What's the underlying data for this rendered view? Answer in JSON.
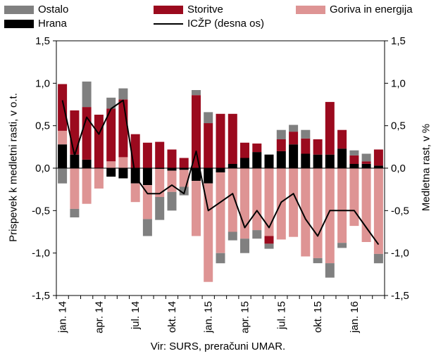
{
  "colors": {
    "ostalo": "#808080",
    "storitve": "#9b0a1e",
    "goriva": "#de9494",
    "hrana": "#000000",
    "line": "#000000"
  },
  "legend": {
    "ostalo": "Ostalo",
    "storitve": "Storitve",
    "goriva": "Goriva in energija",
    "hrana": "Hrana",
    "iczp": "ICŽP (desna os)"
  },
  "source": "Vir: SURS, preračuni UMAR.",
  "chart_data": {
    "type": "bar",
    "stacked": true,
    "ylabel": "Prispevek k medletni rasti, v o.t.",
    "ylabel_right": "Medletna rast, v %",
    "ylim": [
      -1.5,
      1.5
    ],
    "y2lim": [
      -1.5,
      1.5
    ],
    "yticks": [
      "1,5",
      "1,0",
      "0,5",
      "0,0",
      "-0,5",
      "-1,0",
      "-1,5"
    ],
    "y2ticks": [
      "1,5",
      "1,0",
      "0,5",
      "0,0",
      "-0,5",
      "-1,0",
      "-1,5"
    ],
    "grid": false,
    "legend_position": "top",
    "xtick_labels": [
      "jan. 14",
      "apr. 14",
      "jul. 14",
      "okt. 14",
      "jan. 15",
      "apr. 15",
      "jul. 15",
      "okt. 15",
      "jan. 16"
    ],
    "xtick_index": [
      0,
      3,
      6,
      9,
      12,
      15,
      18,
      21,
      24
    ],
    "n_periods": 27,
    "series": [
      {
        "name": "Hrana",
        "values": [
          0.28,
          0.16,
          0.1,
          0.0,
          -0.1,
          -0.12,
          -0.18,
          -0.2,
          -0.01,
          -0.03,
          -0.02,
          -0.15,
          -0.18,
          -0.05,
          0.05,
          0.12,
          0.19,
          0.16,
          0.2,
          0.28,
          0.17,
          0.16,
          0.16,
          0.23,
          0.05,
          0.05,
          0.03
        ]
      },
      {
        "name": "Goriva in energija",
        "values": [
          0.16,
          -0.48,
          -0.42,
          -0.24,
          0.08,
          0.13,
          -0.22,
          -0.4,
          -0.33,
          -0.25,
          -0.2,
          -0.65,
          -1.16,
          -0.95,
          -0.75,
          -0.83,
          -0.73,
          -0.8,
          -0.84,
          -0.81,
          -1.04,
          -1.06,
          -1.12,
          -0.88,
          -0.68,
          -0.87,
          -1.01
        ]
      },
      {
        "name": "Storitve",
        "values": [
          0.55,
          0.52,
          0.62,
          0.63,
          0.62,
          0.68,
          0.4,
          0.3,
          0.31,
          0.22,
          0.12,
          0.86,
          0.53,
          0.64,
          0.59,
          0.18,
          0.1,
          -0.09,
          0.14,
          0.15,
          0.18,
          0.18,
          0.62,
          0.22,
          0.1,
          0.03,
          0.19
        ]
      },
      {
        "name": "Ostalo",
        "values": [
          -0.18,
          -0.1,
          0.3,
          0.0,
          0.13,
          0.13,
          0.0,
          -0.2,
          -0.27,
          -0.22,
          -0.1,
          0.06,
          0.13,
          -0.12,
          -0.1,
          -0.17,
          -0.1,
          -0.06,
          0.11,
          0.08,
          0.1,
          -0.06,
          -0.17,
          -0.06,
          0.06,
          0.09,
          -0.11
        ]
      }
    ],
    "line": {
      "name": "ICŽP (desna os)",
      "values": [
        0.8,
        0.15,
        0.6,
        0.4,
        0.7,
        0.8,
        -0.1,
        -0.3,
        -0.3,
        -0.2,
        -0.3,
        0.2,
        -0.5,
        -0.4,
        -0.3,
        -0.7,
        -0.5,
        -0.7,
        -0.4,
        -0.3,
        -0.6,
        -0.8,
        -0.5,
        -0.5,
        -0.5,
        -0.7,
        -0.9
      ]
    }
  }
}
